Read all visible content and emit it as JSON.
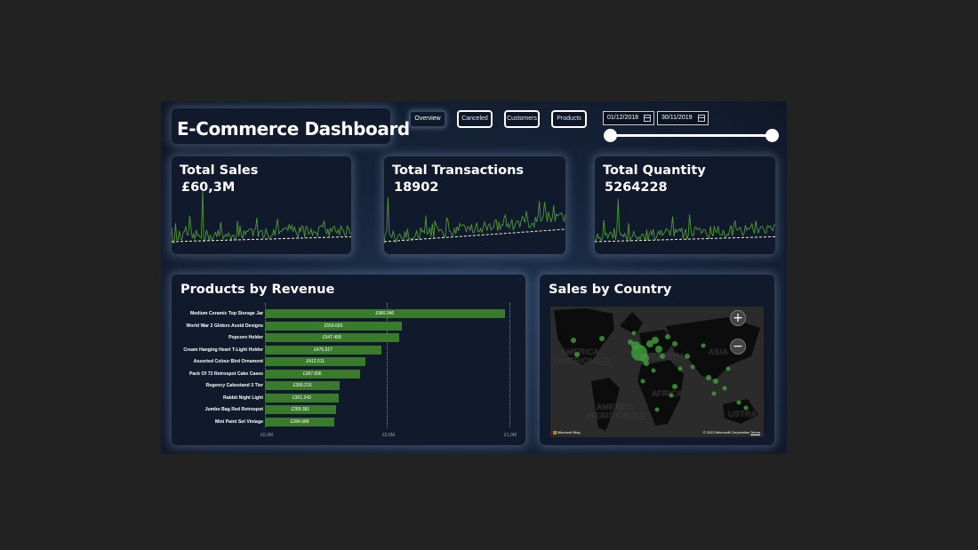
{
  "dashboard": {
    "title": "E-Commerce Dashboard",
    "nav": [
      {
        "label": "Overview",
        "active": true
      },
      {
        "label": "Canceled",
        "active": false
      },
      {
        "label": "Customers",
        "active": false
      },
      {
        "label": "Products",
        "active": false
      }
    ],
    "date_range": {
      "start": "01/12/2018",
      "end": "30/11/2019",
      "start_icon": "calendar-icon",
      "end_icon": "calendar-icon"
    }
  },
  "kpis": [
    {
      "label": "Total Sales",
      "value": "£60,3M"
    },
    {
      "label": "Total Transactions",
      "value": "18902"
    },
    {
      "label": "Total Quantity",
      "value": "5264228"
    }
  ],
  "colors": {
    "accent_green": "#3a7a2c",
    "sparkline": "#4f9a2f",
    "trend": "#f3f5c8",
    "map_point": "#3d9a3a"
  },
  "products": {
    "title": "Products by Revenue",
    "items": [
      {
        "name": "Medium Ceramic Top Storage Jar",
        "value_label": "£980.346",
        "value": 980346
      },
      {
        "name": "World War 2 Gliders Asstd Designs",
        "value_label": "£559.693",
        "value": 559693
      },
      {
        "name": "Popcorn Holder",
        "value_label": "£547.458",
        "value": 547458
      },
      {
        "name": "Cream Hanging Heart T-Light Holder",
        "value_label": "£476.517",
        "value": 476517
      },
      {
        "name": "Assorted Colour Bird Ornament",
        "value_label": "£412.011",
        "value": 412011
      },
      {
        "name": "Pack Of 72 Retrospot Cake Cases",
        "value_label": "£387.606",
        "value": 387606
      },
      {
        "name": "Regency Cakestand 3 Tier",
        "value_label": "£306.216",
        "value": 306216
      },
      {
        "name": "Rabbit Night Light",
        "value_label": "£301.243",
        "value": 301243
      },
      {
        "name": "Jumbo Bag Red Retrospot",
        "value_label": "£289.381",
        "value": 289381
      },
      {
        "name": "Mini Paint Set Vintage",
        "value_label": "£284.688",
        "value": 284688
      }
    ],
    "axis_ticks": [
      "£0,0M",
      "£0,5M",
      "£1,0M"
    ],
    "xlim": [
      0,
      1000000
    ]
  },
  "map": {
    "title": "Sales by Country",
    "labels": [
      "AMERICA",
      "TENTRIONALE",
      "EUROPA",
      "ASIA",
      "AFRICA",
      "AMERICA",
      "MERIDIONALE",
      "USTRA"
    ],
    "zoom_in": "+",
    "zoom_out": "−",
    "brand": "Microsoft Bing",
    "copyright": "© 2023 Microsoft Corporation",
    "terms": "Terms"
  }
}
